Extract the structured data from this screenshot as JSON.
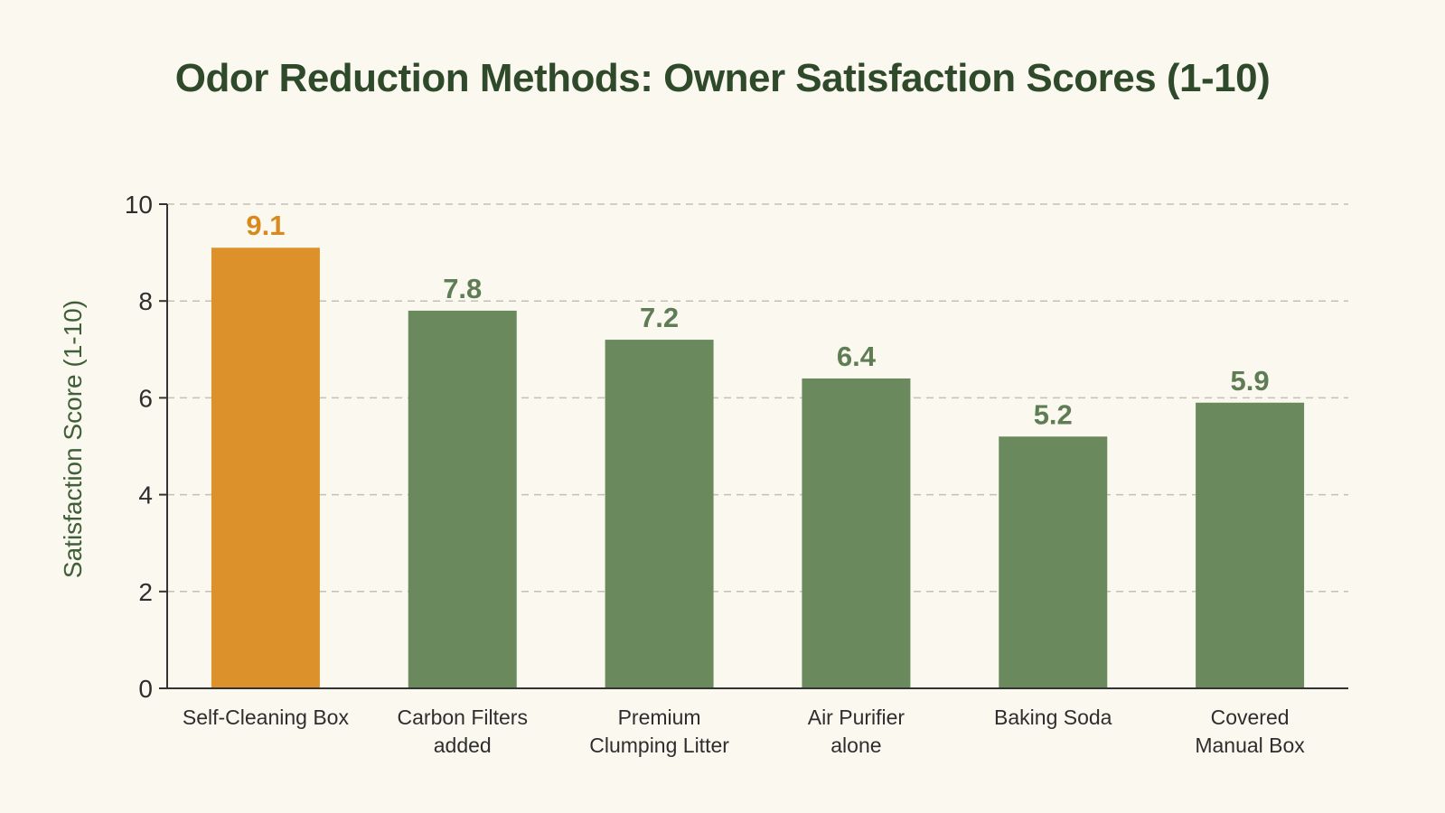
{
  "chart_data": {
    "type": "bar",
    "title": "Odor Reduction Methods: Owner Satisfaction Scores (1-10)",
    "ylabel": "Satisfaction Score (1-10)",
    "xlabel": "",
    "ylim": [
      0,
      10
    ],
    "yticks": [
      0,
      2,
      4,
      6,
      8,
      10
    ],
    "grid": true,
    "categories": [
      [
        "Self-Cleaning Box"
      ],
      [
        "Carbon Filters",
        "added"
      ],
      [
        "Premium",
        "Clumping Litter"
      ],
      [
        "Air Purifier",
        "alone"
      ],
      [
        "Baking Soda"
      ],
      [
        "Covered",
        "Manual Box"
      ]
    ],
    "values": [
      9.1,
      7.8,
      7.2,
      6.4,
      5.2,
      5.9
    ],
    "value_labels": [
      "9.1",
      "7.8",
      "7.2",
      "6.4",
      "5.2",
      "5.9"
    ],
    "highlight_index": 0,
    "colors": {
      "highlight": "#dd912a",
      "bar": "#6a8a5e",
      "highlight_label": "#d98a1f",
      "bar_label": "#5f7d54",
      "grid": "#c4c0b4",
      "axis": "#333333"
    }
  }
}
